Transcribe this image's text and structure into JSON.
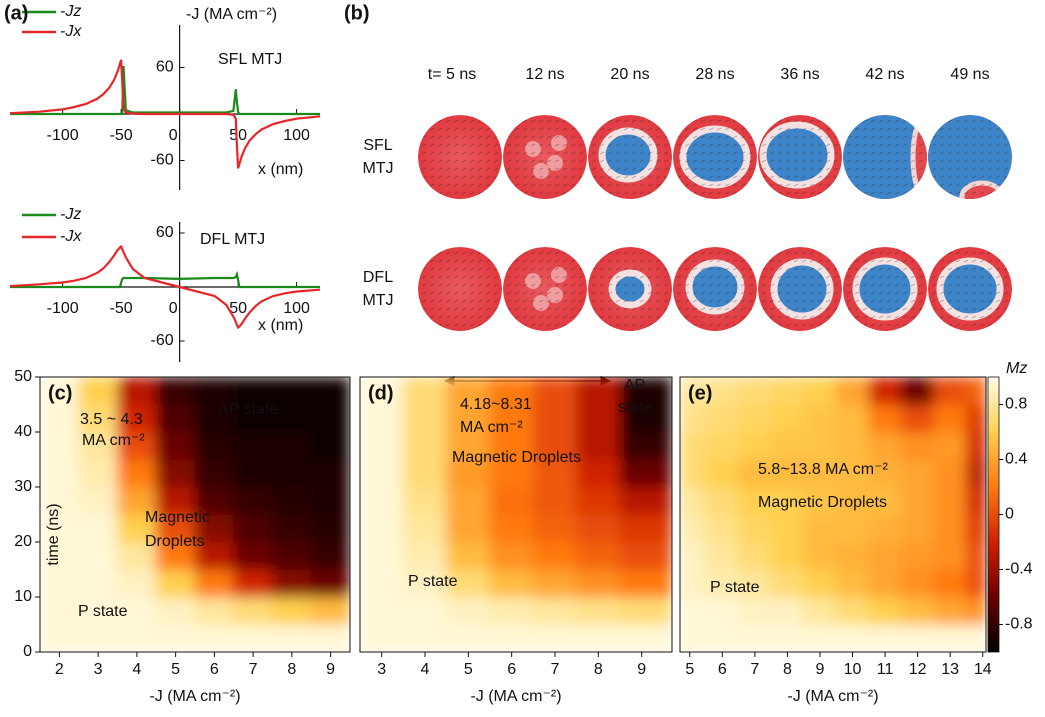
{
  "chart_data": [
    {
      "type": "line",
      "panel": "(a)",
      "title": "SFL MTJ",
      "ylabel": "-J (MA cm⁻²)",
      "xlabel": "x (nm)",
      "xlim": [
        -145,
        120
      ],
      "ylim": [
        -80,
        80
      ],
      "xticks": [
        -100,
        -50,
        0,
        50,
        100
      ],
      "yticks": [
        60,
        -60
      ],
      "x": [
        -145,
        -120,
        -100,
        -90,
        -80,
        -70,
        -65,
        -60,
        -56,
        -53,
        -51,
        -50,
        -49,
        -48,
        -46,
        -40,
        -30,
        0,
        30,
        40,
        46,
        48,
        49,
        50,
        51,
        53,
        56,
        60,
        65,
        70,
        80,
        90,
        100,
        120
      ],
      "series": [
        {
          "name": "-Jz",
          "color": "#1a8a1a",
          "values": [
            0,
            0,
            0,
            0,
            0,
            0,
            0,
            0,
            0,
            0,
            0,
            0,
            0,
            62,
            5,
            2,
            2,
            2,
            2,
            2,
            4,
            32,
            15,
            3,
            0,
            0,
            0,
            0,
            0,
            0,
            0,
            0,
            0,
            0
          ]
        },
        {
          "name": "-Jx",
          "color": "#e8262a",
          "values": [
            1,
            3,
            6,
            9,
            13,
            20,
            26,
            34,
            44,
            55,
            65,
            70,
            40,
            8,
            2,
            0.5,
            0,
            0,
            0,
            0,
            -1,
            -6,
            -40,
            -70,
            -65,
            -55,
            -44,
            -34,
            -26,
            -20,
            -13,
            -9,
            -6,
            -3
          ]
        }
      ]
    },
    {
      "type": "line",
      "title": "DFL MTJ",
      "xlabel": "x (nm)",
      "xlim": [
        -145,
        120
      ],
      "ylim": [
        -80,
        80
      ],
      "xticks": [
        -100,
        -50,
        0,
        50,
        100
      ],
      "yticks": [
        60,
        -60
      ],
      "x": [
        -145,
        -120,
        -100,
        -90,
        -80,
        -70,
        -65,
        -60,
        -56,
        -53,
        -51,
        -50,
        -49,
        -48,
        -46,
        -40,
        -30,
        0,
        30,
        40,
        46,
        48,
        49,
        50,
        51,
        53,
        56,
        60,
        65,
        70,
        80,
        90,
        100,
        120
      ],
      "series": [
        {
          "name": "-Jz",
          "color": "#1a8a1a",
          "values": [
            0,
            0,
            0,
            0,
            0,
            0,
            0,
            0,
            0,
            0,
            0,
            5,
            9,
            10,
            10,
            10,
            10,
            9,
            10,
            10,
            10,
            11,
            14,
            8,
            0,
            0,
            0,
            0,
            0,
            0,
            0,
            0,
            0,
            0
          ]
        },
        {
          "name": "-Jx",
          "color": "#e8262a",
          "values": [
            1,
            3,
            5,
            7,
            10,
            16,
            21,
            28,
            35,
            41,
            44,
            45,
            42,
            39,
            33,
            20,
            10,
            0,
            -10,
            -20,
            -33,
            -39,
            -42,
            -45,
            -44,
            -41,
            -35,
            -28,
            -21,
            -16,
            -10,
            -7,
            -5,
            -3
          ]
        }
      ]
    },
    {
      "type": "heatmap",
      "panel": "(c)",
      "xlabel": "-J (MA cm⁻²)",
      "ylabel": "time (ns)",
      "xlim": [
        1.5,
        9.5
      ],
      "ylim": [
        0,
        50
      ],
      "xticks": [
        2,
        3,
        4,
        5,
        6,
        7,
        8,
        9
      ],
      "yticks": [
        0,
        10,
        20,
        30,
        40,
        50
      ],
      "clim": [
        -1,
        1
      ],
      "colormap": [
        "#000000",
        "#6a0000",
        "#d02000",
        "#ff7a10",
        "#ffd050",
        "#fffce8"
      ],
      "xbins": [
        1.5,
        2.5,
        3.5,
        4.5,
        5.5,
        6.5,
        7.5,
        8.5,
        9.5
      ],
      "ybins": [
        0,
        5,
        10,
        15,
        20,
        25,
        30,
        35,
        40,
        45,
        50
      ],
      "z": [
        [
          0.95,
          0.95,
          0.95,
          0.95,
          0.95,
          0.95,
          0.95,
          0.95
        ],
        [
          0.95,
          0.95,
          0.95,
          0.9,
          0.8,
          0.7,
          0.6,
          0.5
        ],
        [
          0.95,
          0.95,
          0.9,
          0.6,
          0.2,
          -0.2,
          -0.5,
          -0.6
        ],
        [
          0.95,
          0.95,
          0.8,
          0.2,
          -0.3,
          -0.6,
          -0.7,
          -0.8
        ],
        [
          0.95,
          0.95,
          0.6,
          0,
          -0.5,
          -0.7,
          -0.8,
          -0.85
        ],
        [
          0.95,
          0.9,
          0.4,
          -0.3,
          -0.7,
          -0.8,
          -0.85,
          -0.9
        ],
        [
          0.95,
          0.85,
          0.2,
          -0.5,
          -0.8,
          -0.9,
          -0.9,
          -0.9
        ],
        [
          0.95,
          0.8,
          0,
          -0.6,
          -0.85,
          -0.9,
          -0.9,
          -0.95
        ],
        [
          0.95,
          0.7,
          -0.2,
          -0.7,
          -0.9,
          -0.95,
          -0.95,
          -0.95
        ],
        [
          0.95,
          0.6,
          -0.3,
          -0.8,
          -0.9,
          -0.95,
          -0.95,
          -0.95
        ]
      ],
      "annotations": [
        "3.5 ~ 4.3",
        "MA cm⁻²",
        "AP state",
        "Magnetic",
        "Droplets",
        "P state"
      ]
    },
    {
      "type": "heatmap",
      "panel": "(d)",
      "xlabel": "-J (MA cm⁻²)",
      "xlim": [
        2.5,
        9.7
      ],
      "ylim": [
        0,
        50
      ],
      "xticks": [
        3,
        4,
        5,
        6,
        7,
        8,
        9
      ],
      "clim": [
        -1,
        1
      ],
      "colormap": [
        "#000000",
        "#6a0000",
        "#d02000",
        "#ff7a10",
        "#ffd050",
        "#fffce8"
      ],
      "xbins": [
        2.5,
        3.5,
        4.5,
        5.5,
        6.5,
        7.5,
        8.5,
        9.7
      ],
      "ybins": [
        0,
        5,
        10,
        15,
        20,
        25,
        30,
        35,
        40,
        45,
        50
      ],
      "z": [
        [
          0.95,
          0.95,
          0.95,
          0.95,
          0.95,
          0.95,
          0.95
        ],
        [
          0.95,
          0.95,
          0.9,
          0.85,
          0.8,
          0.75,
          0.7
        ],
        [
          0.95,
          0.9,
          0.7,
          0.5,
          0.4,
          0.3,
          0.2
        ],
        [
          0.95,
          0.85,
          0.5,
          0.3,
          0.2,
          0.1,
          0
        ],
        [
          0.95,
          0.8,
          0.4,
          0.2,
          0.1,
          0,
          -0.1
        ],
        [
          0.95,
          0.75,
          0.4,
          0.15,
          0.05,
          -0.1,
          -0.3
        ],
        [
          0.95,
          0.7,
          0.35,
          0.2,
          0.05,
          -0.2,
          -0.6
        ],
        [
          0.95,
          0.7,
          0.4,
          0.2,
          0,
          -0.3,
          -0.8
        ],
        [
          0.95,
          0.7,
          0.4,
          0.2,
          0,
          -0.3,
          -0.9
        ],
        [
          0.95,
          0.7,
          0.4,
          0.2,
          0,
          -0.3,
          -0.9
        ]
      ],
      "annotations": [
        "4.18~8.31",
        "MA cm⁻²",
        "Magnetic Droplets",
        "AP",
        "state",
        "P state"
      ]
    },
    {
      "type": "heatmap",
      "panel": "(e)",
      "xlabel": "-J (MA cm⁻²)",
      "xlim": [
        4.7,
        14.1
      ],
      "ylim": [
        0,
        50
      ],
      "xticks": [
        5,
        6,
        7,
        8,
        9,
        10,
        11,
        12,
        13,
        14
      ],
      "clim": [
        -1,
        1
      ],
      "colormap": [
        "#000000",
        "#6a0000",
        "#d02000",
        "#ff7a10",
        "#ffd050",
        "#fffce8"
      ],
      "colorbar_label": "Mz",
      "cticks": [
        0.8,
        0.4,
        0,
        -0.4,
        -0.8
      ],
      "xbins": [
        4.7,
        5.5,
        6.5,
        7.5,
        8.5,
        9.5,
        10.5,
        11.5,
        12.5,
        13.5,
        14.1
      ],
      "ybins": [
        0,
        5,
        10,
        15,
        20,
        25,
        30,
        35,
        40,
        45,
        50
      ],
      "z": [
        [
          0.95,
          0.95,
          0.95,
          0.95,
          0.95,
          0.95,
          0.95,
          0.95,
          0.95,
          0.95
        ],
        [
          0.95,
          0.95,
          0.9,
          0.9,
          0.8,
          0.7,
          0.6,
          0.5,
          0.4,
          0.3
        ],
        [
          0.9,
          0.85,
          0.8,
          0.7,
          0.6,
          0.5,
          0.4,
          0.3,
          0.2,
          0
        ],
        [
          0.9,
          0.8,
          0.7,
          0.6,
          0.5,
          0.45,
          0.4,
          0.35,
          0.3,
          0
        ],
        [
          0.85,
          0.75,
          0.65,
          0.6,
          0.5,
          0.5,
          0.45,
          0.4,
          0.3,
          -0.1
        ],
        [
          0.8,
          0.7,
          0.6,
          0.6,
          0.55,
          0.5,
          0.5,
          0.4,
          0.3,
          -0.2
        ],
        [
          0.7,
          0.6,
          0.5,
          0.5,
          0.5,
          0.5,
          0.45,
          0.4,
          0.3,
          -0.3
        ],
        [
          0.7,
          0.65,
          0.6,
          0.55,
          0.55,
          0.5,
          0.4,
          0.3,
          0.35,
          -0.2
        ],
        [
          0.75,
          0.7,
          0.65,
          0.6,
          0.55,
          0.5,
          0.2,
          0,
          0.2,
          -0.1
        ],
        [
          0.8,
          0.75,
          0.7,
          0.65,
          0.6,
          0.4,
          -0.2,
          -0.6,
          0,
          0.1
        ]
      ],
      "annotations": [
        "5.8~13.8 MA cm⁻²",
        "Magnetic Droplets",
        "P state"
      ]
    }
  ],
  "snapshots": {
    "panel": "(b)",
    "times": [
      "t= 5 ns",
      "12 ns",
      "20 ns",
      "28 ns",
      "36 ns",
      "42 ns",
      "49 ns"
    ],
    "rows": [
      [
        "SFL",
        "MTJ"
      ],
      [
        "DFL",
        "MTJ"
      ]
    ]
  }
}
